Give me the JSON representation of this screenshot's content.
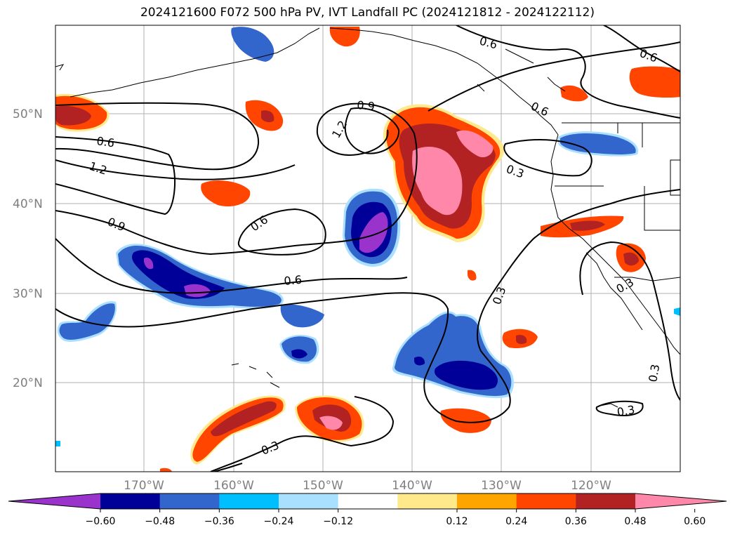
{
  "title": "2024121600 F072 500 hPa PV, IVT Landfall PC (2024121812 - 2024122112)",
  "lat_labels": [
    "50°N",
    "40°N",
    "30°N",
    "20°N"
  ],
  "lon_labels": [
    "170°W",
    "160°W",
    "150°W",
    "140°W",
    "130°W",
    "120°W"
  ],
  "contour_labels": [
    "0.6",
    "0.6",
    "0.6",
    "1.2",
    "0.9",
    "0.9",
    "1.2",
    "0.6",
    "0.6",
    "0.3",
    "0.3",
    "0.3",
    "0.3",
    "0.3",
    "0.3",
    "0.6"
  ],
  "colorbar": {
    "colors": [
      "#9933cc",
      "#000099",
      "#3366cc",
      "#00bfff",
      "#aae0ff",
      "#ffffff",
      "#ffe98a",
      "#ffa500",
      "#ff4500",
      "#b22222",
      "#ff88aa",
      "#ff88aa"
    ],
    "ticks": [
      "−0.60",
      "−0.48",
      "−0.36",
      "−0.24",
      "−0.12",
      "0.12",
      "0.24",
      "0.36",
      "0.48",
      "0.60"
    ]
  }
}
